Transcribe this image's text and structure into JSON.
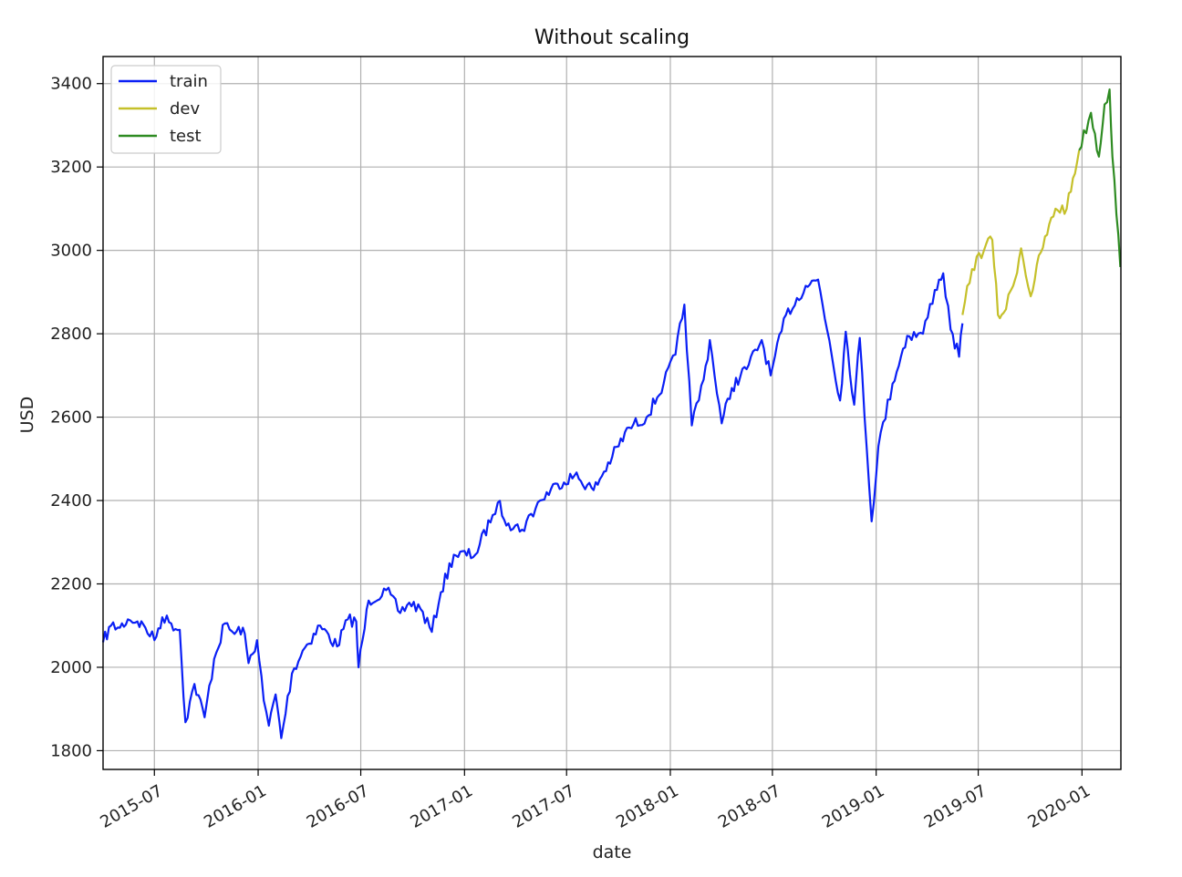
{
  "chart_data": {
    "type": "line",
    "title": "Without scaling",
    "xlabel": "date",
    "ylabel": "USD",
    "xlim": [
      "2015-04-01",
      "2020-03-10"
    ],
    "ylim": [
      1755,
      3465
    ],
    "grid": true,
    "legend_position": "top-left",
    "x_tick_labels": [
      "2015-07",
      "2016-01",
      "2016-07",
      "2017-01",
      "2017-07",
      "2018-01",
      "2018-07",
      "2019-01",
      "2019-07",
      "2020-01"
    ],
    "y_tick_values": [
      1800,
      2000,
      2200,
      2400,
      2600,
      2800,
      3000,
      3200,
      3400
    ],
    "series": [
      {
        "name": "train",
        "color": "#0a1ff5",
        "points": [
          [
            "2015-04-01",
            2060
          ],
          [
            "2015-04-15",
            2100
          ],
          [
            "2015-05-01",
            2095
          ],
          [
            "2015-05-15",
            2115
          ],
          [
            "2015-06-01",
            2110
          ],
          [
            "2015-06-15",
            2095
          ],
          [
            "2015-07-01",
            2065
          ],
          [
            "2015-07-15",
            2120
          ],
          [
            "2015-07-31",
            2105
          ],
          [
            "2015-08-15",
            2090
          ],
          [
            "2015-08-25",
            1868
          ],
          [
            "2015-09-10",
            1960
          ],
          [
            "2015-09-28",
            1880
          ],
          [
            "2015-10-15",
            2020
          ],
          [
            "2015-11-03",
            2105
          ],
          [
            "2015-11-20",
            2080
          ],
          [
            "2015-12-05",
            2095
          ],
          [
            "2015-12-15",
            2010
          ],
          [
            "2015-12-30",
            2065
          ],
          [
            "2016-01-11",
            1920
          ],
          [
            "2016-01-20",
            1860
          ],
          [
            "2016-02-01",
            1935
          ],
          [
            "2016-02-11",
            1830
          ],
          [
            "2016-03-01",
            1985
          ],
          [
            "2016-03-20",
            2040
          ],
          [
            "2016-04-20",
            2100
          ],
          [
            "2016-05-20",
            2050
          ],
          [
            "2016-06-08",
            2115
          ],
          [
            "2016-06-23",
            2110
          ],
          [
            "2016-06-27",
            2000
          ],
          [
            "2016-07-15",
            2160
          ],
          [
            "2016-08-15",
            2185
          ],
          [
            "2016-09-09",
            2130
          ],
          [
            "2016-09-25",
            2155
          ],
          [
            "2016-10-15",
            2140
          ],
          [
            "2016-11-04",
            2085
          ],
          [
            "2016-11-20",
            2180
          ],
          [
            "2016-12-13",
            2270
          ],
          [
            "2017-01-20",
            2270
          ],
          [
            "2017-02-20",
            2365
          ],
          [
            "2017-03-01",
            2395
          ],
          [
            "2017-03-20",
            2345
          ],
          [
            "2017-04-13",
            2330
          ],
          [
            "2017-05-15",
            2400
          ],
          [
            "2017-06-15",
            2440
          ],
          [
            "2017-07-15",
            2460
          ],
          [
            "2017-08-18",
            2425
          ],
          [
            "2017-09-20",
            2505
          ],
          [
            "2017-10-20",
            2575
          ],
          [
            "2017-11-20",
            2600
          ],
          [
            "2017-12-20",
            2680
          ],
          [
            "2018-01-10",
            2750
          ],
          [
            "2018-01-26",
            2870
          ],
          [
            "2018-02-08",
            2580
          ],
          [
            "2018-03-01",
            2690
          ],
          [
            "2018-03-12",
            2785
          ],
          [
            "2018-04-02",
            2585
          ],
          [
            "2018-04-20",
            2670
          ],
          [
            "2018-05-20",
            2725
          ],
          [
            "2018-06-12",
            2785
          ],
          [
            "2018-06-28",
            2700
          ],
          [
            "2018-07-25",
            2845
          ],
          [
            "2018-08-29",
            2915
          ],
          [
            "2018-09-20",
            2930
          ],
          [
            "2018-10-10",
            2785
          ],
          [
            "2018-10-29",
            2640
          ],
          [
            "2018-11-08",
            2805
          ],
          [
            "2018-11-23",
            2630
          ],
          [
            "2018-12-03",
            2790
          ],
          [
            "2018-12-24",
            2350
          ],
          [
            "2019-01-05",
            2530
          ],
          [
            "2019-01-30",
            2680
          ],
          [
            "2019-02-25",
            2795
          ],
          [
            "2019-03-25",
            2800
          ],
          [
            "2019-04-15",
            2905
          ],
          [
            "2019-04-30",
            2945
          ],
          [
            "2019-05-13",
            2810
          ],
          [
            "2019-05-28",
            2745
          ],
          [
            "2019-06-03",
            2825
          ]
        ]
      },
      {
        "name": "dev",
        "color": "#c5c02a",
        "points": [
          [
            "2019-06-03",
            2845
          ],
          [
            "2019-06-20",
            2955
          ],
          [
            "2019-07-15",
            3015
          ],
          [
            "2019-07-26",
            3025
          ],
          [
            "2019-08-05",
            2845
          ],
          [
            "2019-08-15",
            2850
          ],
          [
            "2019-09-01",
            2915
          ],
          [
            "2019-09-15",
            3005
          ],
          [
            "2019-10-02",
            2890
          ],
          [
            "2019-10-20",
            2995
          ],
          [
            "2019-11-15",
            3100
          ],
          [
            "2019-12-05",
            3100
          ],
          [
            "2019-12-27",
            3240
          ]
        ]
      },
      {
        "name": "test",
        "color": "#2e8b22",
        "points": [
          [
            "2019-12-27",
            3240
          ],
          [
            "2020-01-17",
            3330
          ],
          [
            "2020-01-31",
            3225
          ],
          [
            "2020-02-10",
            3350
          ],
          [
            "2020-02-19",
            3386
          ],
          [
            "2020-02-24",
            3225
          ],
          [
            "2020-03-09",
            2960
          ]
        ]
      }
    ]
  }
}
